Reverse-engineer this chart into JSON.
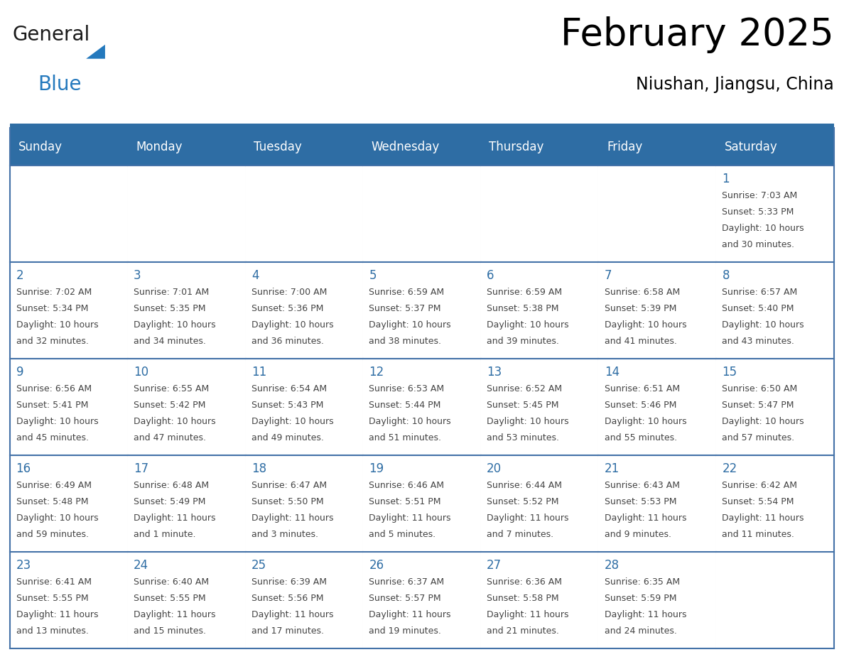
{
  "title": "February 2025",
  "subtitle": "Niushan, Jiangsu, China",
  "header_bg": "#2E6DA4",
  "header_text_color": "#FFFFFF",
  "cell_bg": "#FFFFFF",
  "border_color": "#2E6DA4",
  "row_border_color": "#4472A8",
  "col_border_color": "#CCCCCC",
  "day_number_color": "#2E6DA4",
  "detail_color": "#444444",
  "days_of_week": [
    "Sunday",
    "Monday",
    "Tuesday",
    "Wednesday",
    "Thursday",
    "Friday",
    "Saturday"
  ],
  "weeks": [
    [
      {
        "day": null,
        "sunrise": null,
        "sunset": null,
        "daylight": null
      },
      {
        "day": null,
        "sunrise": null,
        "sunset": null,
        "daylight": null
      },
      {
        "day": null,
        "sunrise": null,
        "sunset": null,
        "daylight": null
      },
      {
        "day": null,
        "sunrise": null,
        "sunset": null,
        "daylight": null
      },
      {
        "day": null,
        "sunrise": null,
        "sunset": null,
        "daylight": null
      },
      {
        "day": null,
        "sunrise": null,
        "sunset": null,
        "daylight": null
      },
      {
        "day": 1,
        "sunrise": "7:03 AM",
        "sunset": "5:33 PM",
        "daylight": "10 hours\nand 30 minutes."
      }
    ],
    [
      {
        "day": 2,
        "sunrise": "7:02 AM",
        "sunset": "5:34 PM",
        "daylight": "10 hours\nand 32 minutes."
      },
      {
        "day": 3,
        "sunrise": "7:01 AM",
        "sunset": "5:35 PM",
        "daylight": "10 hours\nand 34 minutes."
      },
      {
        "day": 4,
        "sunrise": "7:00 AM",
        "sunset": "5:36 PM",
        "daylight": "10 hours\nand 36 minutes."
      },
      {
        "day": 5,
        "sunrise": "6:59 AM",
        "sunset": "5:37 PM",
        "daylight": "10 hours\nand 38 minutes."
      },
      {
        "day": 6,
        "sunrise": "6:59 AM",
        "sunset": "5:38 PM",
        "daylight": "10 hours\nand 39 minutes."
      },
      {
        "day": 7,
        "sunrise": "6:58 AM",
        "sunset": "5:39 PM",
        "daylight": "10 hours\nand 41 minutes."
      },
      {
        "day": 8,
        "sunrise": "6:57 AM",
        "sunset": "5:40 PM",
        "daylight": "10 hours\nand 43 minutes."
      }
    ],
    [
      {
        "day": 9,
        "sunrise": "6:56 AM",
        "sunset": "5:41 PM",
        "daylight": "10 hours\nand 45 minutes."
      },
      {
        "day": 10,
        "sunrise": "6:55 AM",
        "sunset": "5:42 PM",
        "daylight": "10 hours\nand 47 minutes."
      },
      {
        "day": 11,
        "sunrise": "6:54 AM",
        "sunset": "5:43 PM",
        "daylight": "10 hours\nand 49 minutes."
      },
      {
        "day": 12,
        "sunrise": "6:53 AM",
        "sunset": "5:44 PM",
        "daylight": "10 hours\nand 51 minutes."
      },
      {
        "day": 13,
        "sunrise": "6:52 AM",
        "sunset": "5:45 PM",
        "daylight": "10 hours\nand 53 minutes."
      },
      {
        "day": 14,
        "sunrise": "6:51 AM",
        "sunset": "5:46 PM",
        "daylight": "10 hours\nand 55 minutes."
      },
      {
        "day": 15,
        "sunrise": "6:50 AM",
        "sunset": "5:47 PM",
        "daylight": "10 hours\nand 57 minutes."
      }
    ],
    [
      {
        "day": 16,
        "sunrise": "6:49 AM",
        "sunset": "5:48 PM",
        "daylight": "10 hours\nand 59 minutes."
      },
      {
        "day": 17,
        "sunrise": "6:48 AM",
        "sunset": "5:49 PM",
        "daylight": "11 hours\nand 1 minute."
      },
      {
        "day": 18,
        "sunrise": "6:47 AM",
        "sunset": "5:50 PM",
        "daylight": "11 hours\nand 3 minutes."
      },
      {
        "day": 19,
        "sunrise": "6:46 AM",
        "sunset": "5:51 PM",
        "daylight": "11 hours\nand 5 minutes."
      },
      {
        "day": 20,
        "sunrise": "6:44 AM",
        "sunset": "5:52 PM",
        "daylight": "11 hours\nand 7 minutes."
      },
      {
        "day": 21,
        "sunrise": "6:43 AM",
        "sunset": "5:53 PM",
        "daylight": "11 hours\nand 9 minutes."
      },
      {
        "day": 22,
        "sunrise": "6:42 AM",
        "sunset": "5:54 PM",
        "daylight": "11 hours\nand 11 minutes."
      }
    ],
    [
      {
        "day": 23,
        "sunrise": "6:41 AM",
        "sunset": "5:55 PM",
        "daylight": "11 hours\nand 13 minutes."
      },
      {
        "day": 24,
        "sunrise": "6:40 AM",
        "sunset": "5:55 PM",
        "daylight": "11 hours\nand 15 minutes."
      },
      {
        "day": 25,
        "sunrise": "6:39 AM",
        "sunset": "5:56 PM",
        "daylight": "11 hours\nand 17 minutes."
      },
      {
        "day": 26,
        "sunrise": "6:37 AM",
        "sunset": "5:57 PM",
        "daylight": "11 hours\nand 19 minutes."
      },
      {
        "day": 27,
        "sunrise": "6:36 AM",
        "sunset": "5:58 PM",
        "daylight": "11 hours\nand 21 minutes."
      },
      {
        "day": 28,
        "sunrise": "6:35 AM",
        "sunset": "5:59 PM",
        "daylight": "11 hours\nand 24 minutes."
      },
      {
        "day": null,
        "sunrise": null,
        "sunset": null,
        "daylight": null
      }
    ]
  ],
  "logo_color_general": "#1a1a1a",
  "logo_color_blue": "#2479BD",
  "title_fontsize": 38,
  "subtitle_fontsize": 17,
  "header_fontsize": 12,
  "day_num_fontsize": 12,
  "detail_fontsize": 9
}
